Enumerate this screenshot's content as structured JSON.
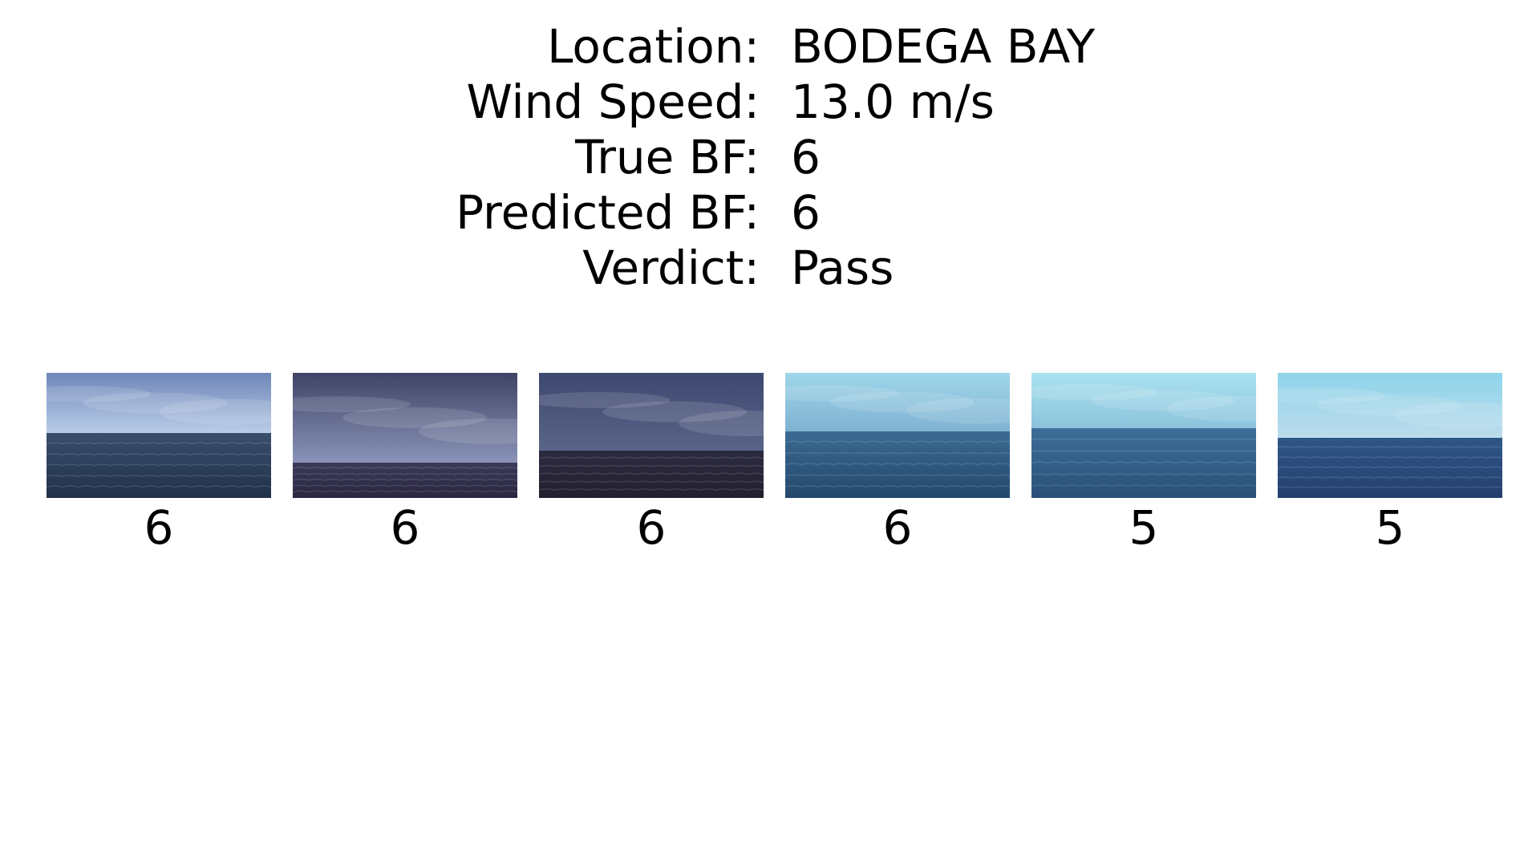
{
  "info": {
    "rows": [
      {
        "label": "Location:",
        "value": "BODEGA BAY"
      },
      {
        "label": "Wind Speed:",
        "value": "13.0 m/s"
      },
      {
        "label": "True BF:",
        "value": "6"
      },
      {
        "label": "Predicted BF:",
        "value": "6"
      },
      {
        "label": "Verdict:",
        "value": "Pass"
      }
    ]
  },
  "images": [
    {
      "label": "6",
      "sky_top": "#6f86b8",
      "sky_bottom": "#b9cde8",
      "sea_top": "#3a4e6e",
      "sea_bottom": "#1f3048",
      "horizon": 0.48
    },
    {
      "label": "6",
      "sky_top": "#3e4466",
      "sky_bottom": "#8a94b8",
      "sea_top": "#3a3a58",
      "sea_bottom": "#2a2640",
      "horizon": 0.72
    },
    {
      "label": "6",
      "sky_top": "#3e4870",
      "sky_bottom": "#5a6488",
      "sea_top": "#2c2a40",
      "sea_bottom": "#22202e",
      "horizon": 0.62
    },
    {
      "label": "6",
      "sky_top": "#9fd6ea",
      "sky_bottom": "#7fb2d2",
      "sea_top": "#3b6a92",
      "sea_bottom": "#24486c",
      "horizon": 0.47
    },
    {
      "label": "5",
      "sky_top": "#a9e2f0",
      "sky_bottom": "#8cc3dc",
      "sea_top": "#3c6e98",
      "sea_bottom": "#2a5078",
      "horizon": 0.44
    },
    {
      "label": "5",
      "sky_top": "#8ed4ea",
      "sky_bottom": "#bcdcec",
      "sea_top": "#2f5688",
      "sea_bottom": "#243f6e",
      "horizon": 0.52
    }
  ]
}
